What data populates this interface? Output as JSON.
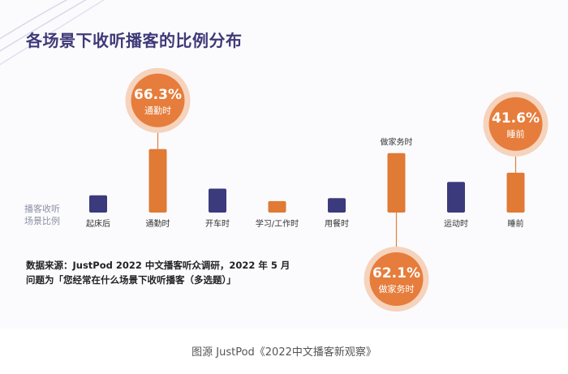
{
  "title": "各场景下收听播客的比例分布",
  "axis_label": [
    "播客收听",
    "场景比例"
  ],
  "source_lines": [
    "数据来源：JustPod 2022 中文播客听众调研，2022 年 5 月",
    "问题为「您经常在什么场景下收听播客（多选题）」"
  ],
  "caption": "图源   JustPod《2022中文播客新观察》",
  "colors": {
    "navy": "#3b3a7c",
    "orange": "#e07a35",
    "bubble_fill": "#e67d3c",
    "bubble_ring": "#f6d3bd",
    "title": "#3f3a78"
  },
  "chart_data": {
    "type": "bar",
    "title": "各场景下收听播客的比例分布",
    "ylabel": "播客收听场景比例",
    "categories": [
      "起床后",
      "通勤时",
      "开车时",
      "学习/工作时",
      "用餐时",
      "做家务时",
      "运动时",
      "睡前"
    ],
    "values": [
      18,
      66.3,
      25,
      12,
      15,
      62.1,
      32,
      41.6
    ],
    "colors": [
      "navy",
      "orange",
      "navy",
      "orange",
      "navy",
      "orange",
      "navy",
      "orange"
    ],
    "category_label_above": [
      false,
      false,
      false,
      false,
      false,
      true,
      false,
      false
    ],
    "callouts": [
      {
        "category": "通勤时",
        "value_text": "66.3%",
        "label": "通勤时",
        "side": "above"
      },
      {
        "category": "做家务时",
        "value_text": "62.1%",
        "label": "做家务时",
        "side": "below"
      },
      {
        "category": "睡前",
        "value_text": "41.6%",
        "label": "睡前",
        "side": "above"
      }
    ],
    "ylim": [
      0,
      100
    ]
  }
}
